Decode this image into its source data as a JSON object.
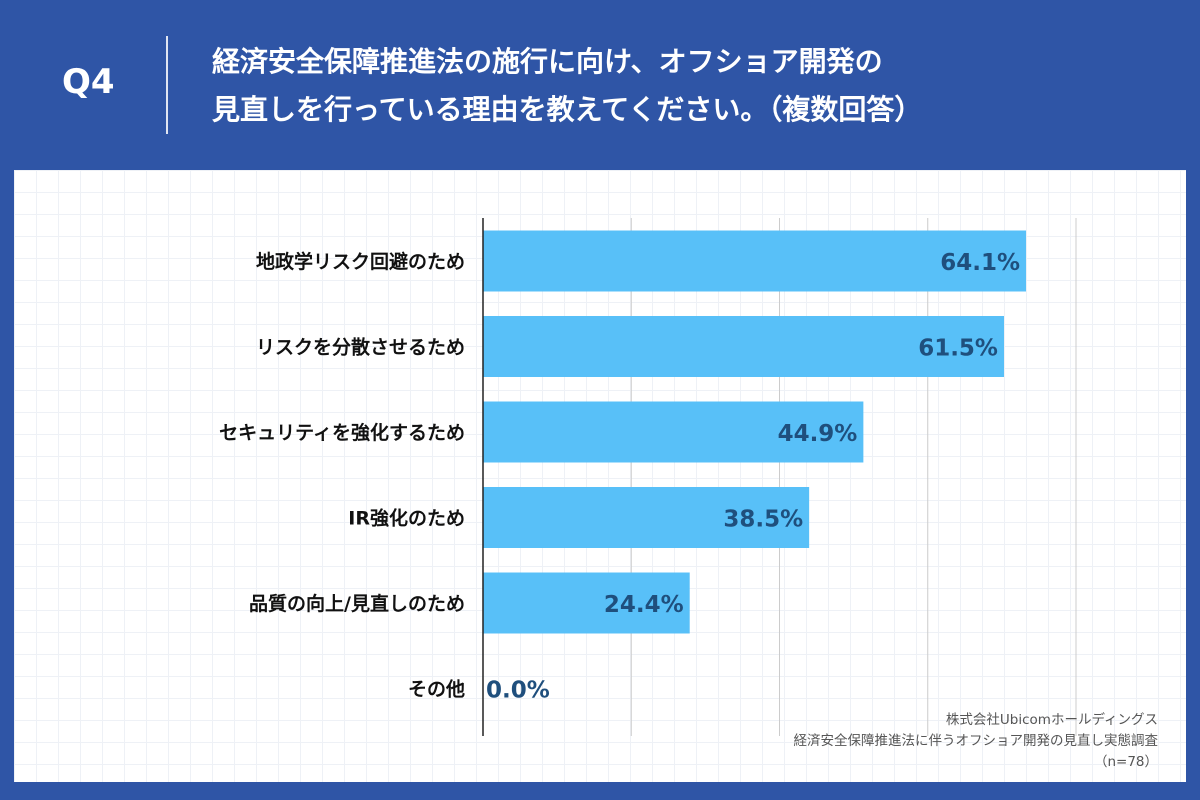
{
  "header": {
    "question_number": "Q4",
    "question_line1": "経済安全保障推進法の施行に向け、オフショア開発の",
    "question_line2": "見直しを行っている理由を教えてください。（複数回答）"
  },
  "source": {
    "company": "株式会社Ubicomホールディングス",
    "survey": "経済安全保障推進法に伴うオフショア開発の見直し実態調査",
    "sample": "（n=78）"
  },
  "colors": {
    "background": "#2f55a6",
    "bar": "#58c0f8",
    "value_text": "#1f4f7d"
  },
  "chart_data": {
    "type": "bar",
    "orientation": "horizontal",
    "categories": [
      "地政学リスク回避のため",
      "リスクを分散させるため",
      "セキュリティを強化するため",
      "IR強化のため",
      "品質の向上/見直しのため",
      "その他"
    ],
    "values": [
      64.1,
      61.5,
      44.9,
      38.5,
      24.4,
      0.0
    ],
    "value_labels": [
      "64.1%",
      "61.5%",
      "44.9%",
      "38.5%",
      "24.4%",
      "0.0%"
    ],
    "xlim": [
      0,
      70
    ],
    "gridline_step": 17.5,
    "grid": true
  }
}
